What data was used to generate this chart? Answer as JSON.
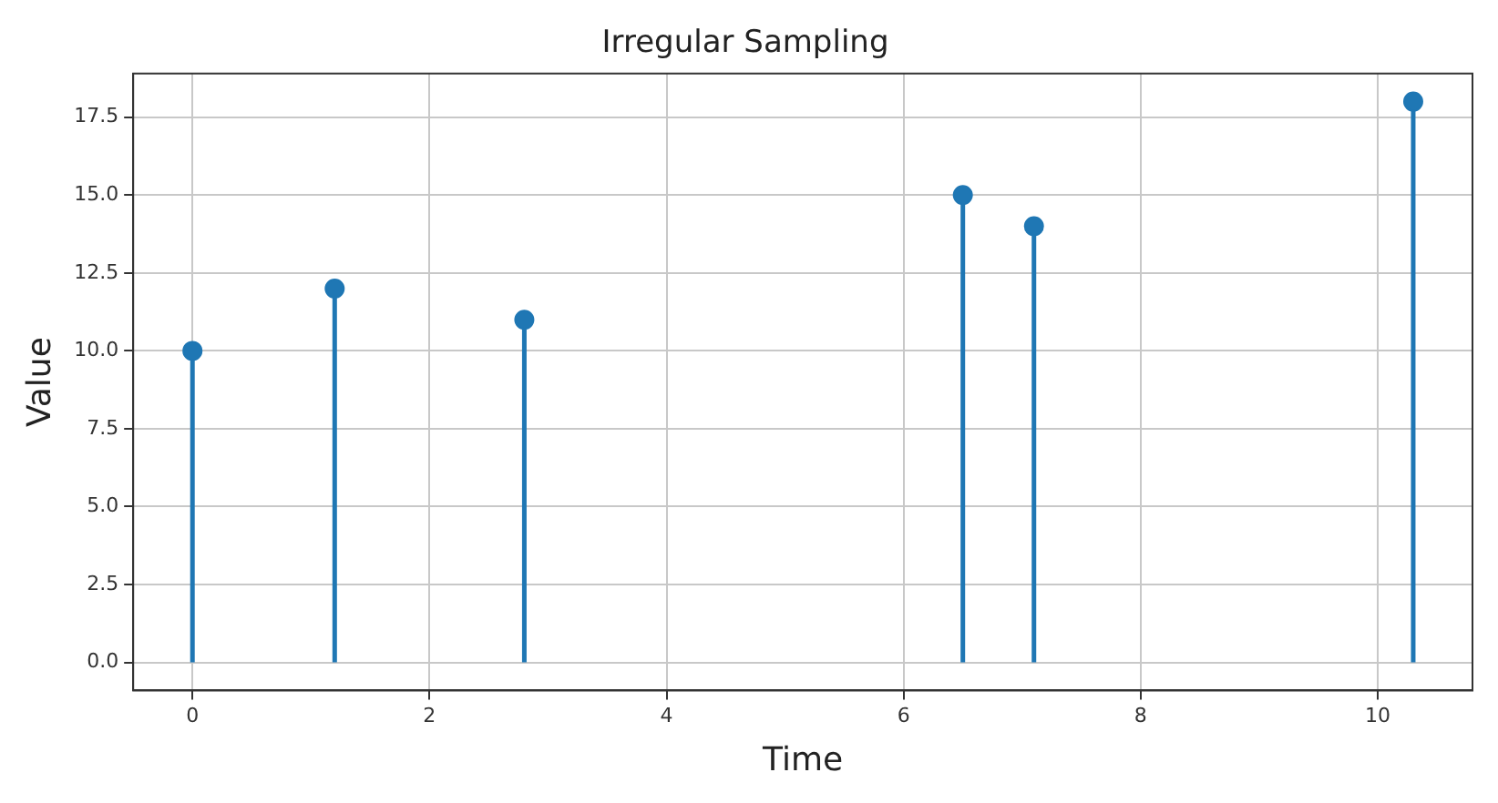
{
  "chart_data": {
    "type": "lollipop",
    "title": "Irregular Sampling",
    "xlabel": "Time",
    "ylabel": "Value",
    "x": [
      0,
      1.2,
      2.8,
      6.5,
      7.1,
      10.3
    ],
    "values": [
      10,
      12,
      11,
      15,
      14,
      18
    ],
    "color": "#1f77b4",
    "xlim": [
      -0.5,
      10.8
    ],
    "xticks": [
      0,
      2,
      4,
      6,
      8,
      10
    ],
    "ylim": [
      -0.9,
      18.9
    ],
    "yticks": [
      {
        "value": 0,
        "label": "0.0"
      },
      {
        "value": 2.5,
        "label": "2.5"
      },
      {
        "value": 5,
        "label": "5.0"
      },
      {
        "value": 7.5,
        "label": "7.5"
      },
      {
        "value": 10,
        "label": "10.0"
      },
      {
        "value": 12.5,
        "label": "12.5"
      },
      {
        "value": 15,
        "label": "15.0"
      },
      {
        "value": 17.5,
        "label": "17.5"
      }
    ],
    "grid": true,
    "marker": "circle"
  }
}
